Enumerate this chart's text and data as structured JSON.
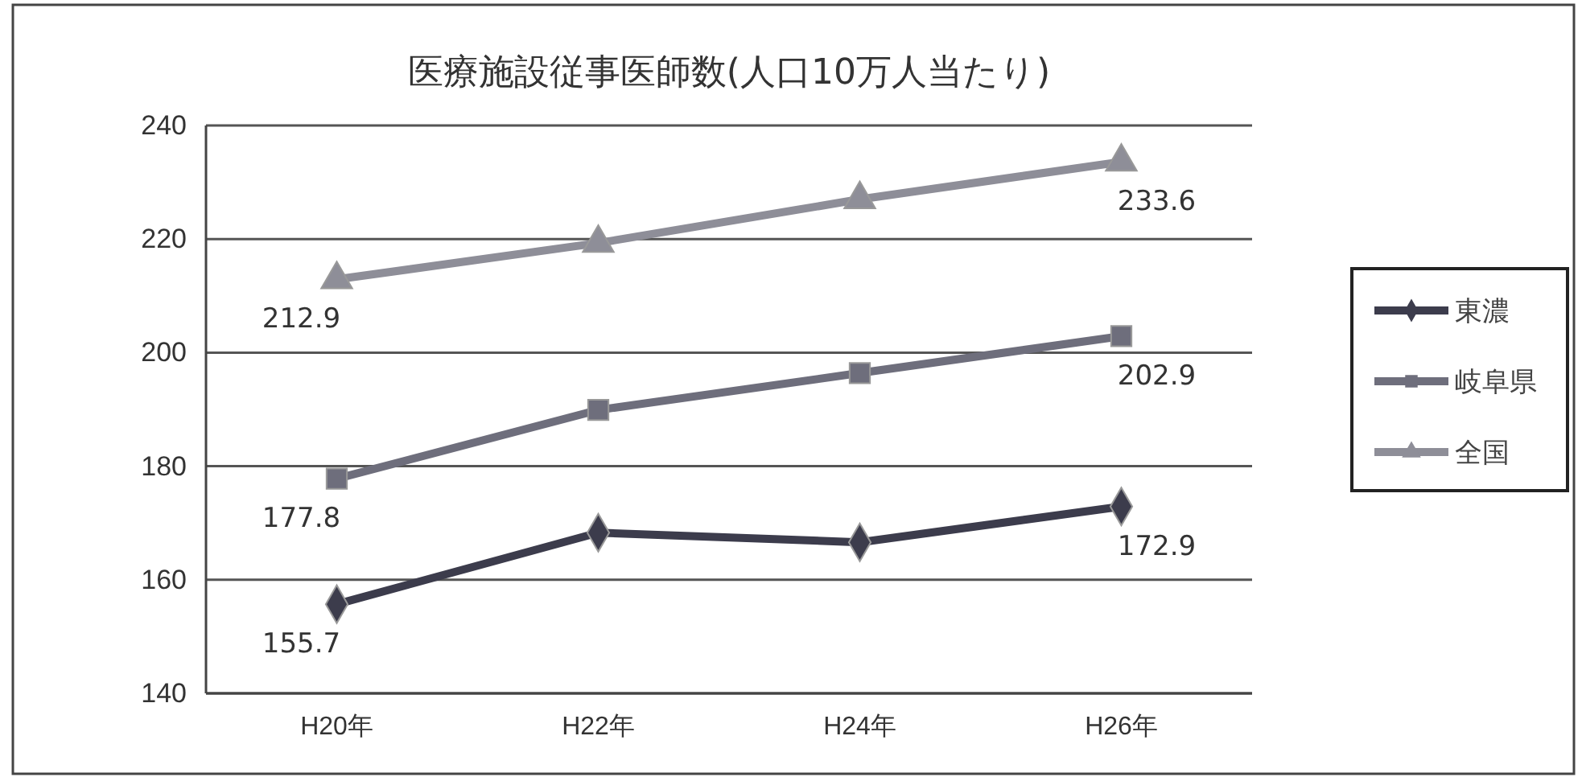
{
  "chart_data": {
    "type": "line",
    "title": "医療施設従事医師数(人口10万人当たり)",
    "categories": [
      "H20年",
      "H22年",
      "H24年",
      "H26年"
    ],
    "series": [
      {
        "name": "東濃",
        "color": "#3c3c4c",
        "marker": "diamond",
        "values": [
          155.7,
          168.3,
          166.6,
          172.9
        ],
        "value_labels": [
          "155.7",
          null,
          null,
          "172.9"
        ]
      },
      {
        "name": "岐阜県",
        "color": "#6e6e7c",
        "marker": "square",
        "values": [
          177.8,
          189.9,
          196.4,
          202.9
        ],
        "value_labels": [
          "177.8",
          null,
          null,
          "202.9"
        ]
      },
      {
        "name": "全国",
        "color": "#8e8e98",
        "marker": "triangle",
        "values": [
          212.9,
          219.3,
          227.0,
          233.6
        ],
        "value_labels": [
          "212.9",
          null,
          null,
          "233.6"
        ]
      }
    ],
    "ylim": [
      140,
      240
    ],
    "yticks": [
      140,
      160,
      180,
      200,
      220,
      240
    ],
    "grid": "y",
    "legend": "right"
  }
}
